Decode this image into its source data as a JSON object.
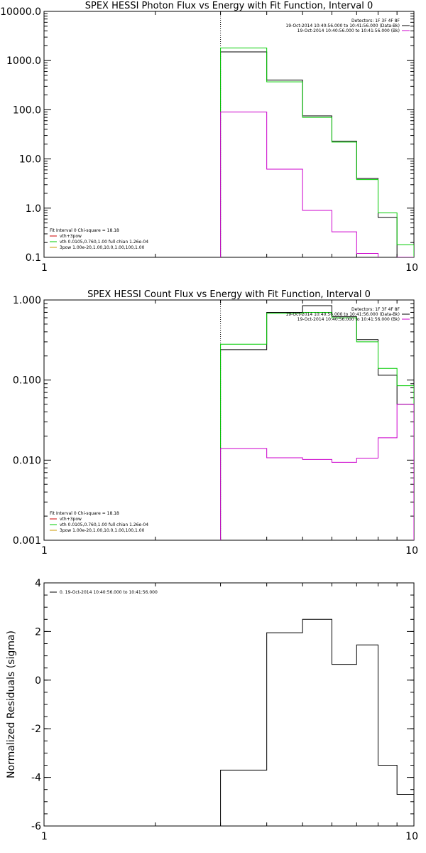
{
  "chart_data": [
    {
      "type": "line",
      "step": true,
      "title": "SPEX HESSI Photon Flux vs Energy with Fit Function, Interval 0",
      "xlabel": "",
      "ylabel": "",
      "xscale": "log",
      "yscale": "log",
      "xlim": [
        1,
        10
      ],
      "ylim": [
        0.1,
        10000
      ],
      "xticks": [
        1,
        10
      ],
      "xtick_labels": [
        "1",
        "10"
      ],
      "yticks": [
        0.1,
        1,
        10,
        100,
        1000,
        10000
      ],
      "ytick_labels": [
        "0.1",
        "1.0",
        "10.0",
        "100.0",
        "1000.0",
        "10000.0"
      ],
      "vline_x": 3,
      "legend_top_right": [
        "Detectors: 1F 3F 4F 8F",
        "19-Oct-2014 10:40:56.000 to 10:41:56.000 (Data-Bk)",
        "19-Oct-2014 10:40:56.000 to 10:41:56.000 (Bk)"
      ],
      "legend_bottom_left": [
        "Fit Interval 0   Chi-square = 18.18",
        "vth+3pow",
        "vth 0.0105,0.760,1.00  full chian 1.26e-04",
        "3pow 1.00e-20,1.00,10.0,1.00,100,1.00"
      ],
      "bin_edges": [
        3,
        4,
        5,
        6,
        7,
        8,
        9,
        10
      ],
      "series": [
        {
          "name": "19-Oct-2014 10:40:56.000 to 10:41:56.000 (Data-Bk)",
          "color": "#000000",
          "values": [
            1500,
            400,
            75,
            23,
            4.0,
            0.65,
            0.1
          ]
        },
        {
          "name": "vth+3pow",
          "color": "#00cc00",
          "values": [
            1800,
            370,
            70,
            22,
            3.8,
            0.8,
            0.18
          ]
        },
        {
          "name": "19-Oct-2014 10:40:56.000 to 10:41:56.000 (Bk)",
          "color": "#cc00cc",
          "values": [
            90,
            6.2,
            0.9,
            0.33,
            0.12,
            0.095,
            0.1
          ]
        }
      ]
    },
    {
      "type": "line",
      "step": true,
      "title": "SPEX HESSI Count Flux vs Energy with Fit Function, Interval 0",
      "xlabel": "",
      "ylabel": "",
      "xscale": "log",
      "yscale": "log",
      "xlim": [
        1,
        10
      ],
      "ylim": [
        0.001,
        1
      ],
      "xticks": [
        1,
        10
      ],
      "xtick_labels": [
        "1",
        "10"
      ],
      "yticks": [
        0.001,
        0.01,
        0.1,
        1
      ],
      "ytick_labels": [
        "0.001",
        "0.010",
        "0.100",
        "1.000"
      ],
      "vline_x": 3,
      "legend_top_right": [
        "Detectors: 1F 3F 4F 8F",
        "19-Oct-2014 10:40:56.000 to 10:41:56.000 (Data-Bk)",
        "19-Oct-2014 10:40:56.000 to 10:41:56.000 (Bk)"
      ],
      "legend_bottom_left": [
        "Fit Interval 0   Chi-square = 18.18",
        "vth+3pow",
        "vth 0.0105,0.760,1.00  full chian 1.26e-04",
        "3pow 1.00e-20,1.00,10.0,1.00,100,1.00"
      ],
      "bin_edges": [
        3,
        4,
        5,
        6,
        7,
        8,
        9,
        10
      ],
      "series": [
        {
          "name": "19-Oct-2014 10:40:56.000 to 10:41:56.000 (Data-Bk)",
          "color": "#000000",
          "values": [
            0.24,
            0.7,
            0.85,
            0.62,
            0.32,
            0.115,
            0.05
          ]
        },
        {
          "name": "vth+3pow",
          "color": "#00cc00",
          "values": [
            0.28,
            0.68,
            0.7,
            0.6,
            0.3,
            0.14,
            0.085
          ]
        },
        {
          "name": "19-Oct-2014 10:40:56.000 to 10:41:56.000 (Bk)",
          "color": "#cc00cc",
          "values": [
            0.014,
            0.0107,
            0.0102,
            0.0094,
            0.0106,
            0.019,
            0.05
          ]
        }
      ]
    },
    {
      "type": "line",
      "step": true,
      "title": "",
      "xlabel": "",
      "ylabel": "Normalized Residuals (sigma)",
      "xscale": "log",
      "yscale": "linear",
      "xlim": [
        1,
        10
      ],
      "ylim": [
        -6,
        4
      ],
      "xticks": [
        1,
        10
      ],
      "xtick_labels": [
        "1",
        "10"
      ],
      "yticks": [
        -6,
        -4,
        -2,
        0,
        2,
        4
      ],
      "ytick_labels": [
        "-6",
        "-4",
        "-2",
        "0",
        "2",
        "4"
      ],
      "legend_top_left": [
        "0. 19-Oct-2014 10:40:56.000 to 10:41:56.000"
      ],
      "bin_edges": [
        3,
        4,
        5,
        6,
        7,
        8,
        9,
        10
      ],
      "series": [
        {
          "name": "0. 19-Oct-2014 10:40:56.000 to 10:41:56.000",
          "color": "#000000",
          "values": [
            -3.7,
            1.95,
            2.5,
            0.65,
            1.45,
            -3.5,
            -4.7
          ]
        }
      ]
    }
  ]
}
